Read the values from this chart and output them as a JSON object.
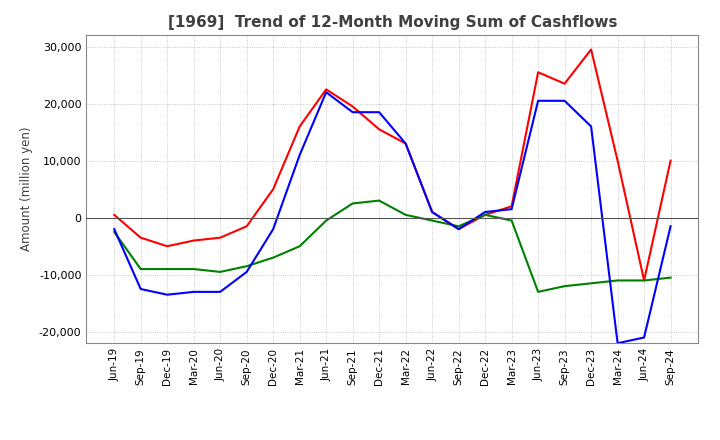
{
  "title": "[1969]  Trend of 12-Month Moving Sum of Cashflows",
  "ylabel": "Amount (million yen)",
  "ylim": [
    -22000,
    32000
  ],
  "yticks": [
    -20000,
    -10000,
    0,
    10000,
    20000,
    30000
  ],
  "x_labels": [
    "Jun-19",
    "Sep-19",
    "Dec-19",
    "Mar-20",
    "Jun-20",
    "Sep-20",
    "Dec-20",
    "Mar-21",
    "Jun-21",
    "Sep-21",
    "Dec-21",
    "Mar-22",
    "Jun-22",
    "Sep-22",
    "Dec-22",
    "Mar-23",
    "Jun-23",
    "Sep-23",
    "Dec-23",
    "Mar-24",
    "Jun-24",
    "Sep-24"
  ],
  "operating": [
    500,
    -3500,
    -5000,
    -4000,
    -3500,
    -1500,
    5000,
    16000,
    22500,
    19500,
    15500,
    13000,
    1000,
    -2000,
    500,
    2000,
    25500,
    23500,
    29500,
    10000,
    -11000,
    10000
  ],
  "investing": [
    -2500,
    -9000,
    -9000,
    -9000,
    -9500,
    -8500,
    -7000,
    -5000,
    -500,
    2500,
    3000,
    500,
    -500,
    -1500,
    500,
    -500,
    -13000,
    -12000,
    -11500,
    -11000,
    -11000,
    -10500
  ],
  "free": [
    -2000,
    -12500,
    -13500,
    -13000,
    -13000,
    -9500,
    -2000,
    11000,
    22000,
    18500,
    18500,
    13000,
    1000,
    -2000,
    1000,
    1500,
    20500,
    20500,
    16000,
    -22000,
    -21000,
    -1500
  ],
  "operating_color": "#ff0000",
  "investing_color": "#008000",
  "free_color": "#0000ff",
  "background_color": "#ffffff",
  "grid_color": "#bbbbbb",
  "title_color": "#404040",
  "title_fontsize": 11
}
